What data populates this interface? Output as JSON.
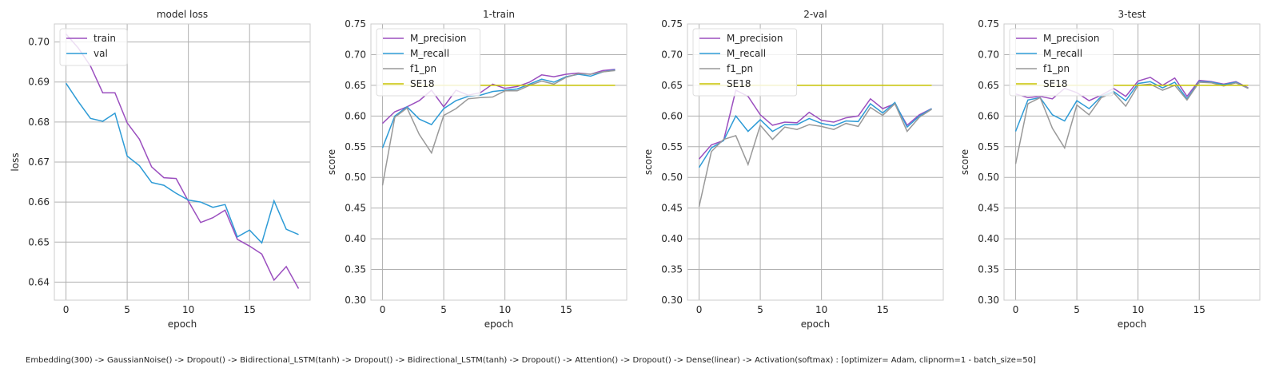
{
  "caption": "Embedding(300) -> GaussianNoise() -> Dropout() -> Bidirectional_LSTM(tanh) -> Dropout() -> Bidirectional_LSTM(tanh) -> Dropout() -> Attention() -> Dropout() -> Dense(linear) -> Activation(softmax) : [optimizer= Adam, clipnorm=1 - batch_size=50]",
  "chart_data": [
    {
      "type": "line",
      "title": "model loss",
      "xlabel": "epoch",
      "ylabel": "loss",
      "xlim": [
        -0.95,
        19.95
      ],
      "ylim": [
        0.6355,
        0.7045
      ],
      "xticks": [
        0,
        5,
        10,
        15
      ],
      "yticks": [
        0.64,
        0.65,
        0.66,
        0.67,
        0.68,
        0.69,
        0.7
      ],
      "ytick_format": "0.2f",
      "grid": true,
      "legend_position": "top-left",
      "x": [
        0,
        1,
        2,
        3,
        4,
        5,
        6,
        7,
        8,
        9,
        10,
        11,
        12,
        13,
        14,
        15,
        16,
        17,
        18,
        19
      ],
      "series": [
        {
          "name": "train",
          "color": "#9b4fbf",
          "values": [
            0.702,
            0.6985,
            0.694,
            0.6873,
            0.6873,
            0.6798,
            0.6757,
            0.6688,
            0.6661,
            0.6659,
            0.6602,
            0.6549,
            0.6561,
            0.658,
            0.6507,
            0.649,
            0.647,
            0.6405,
            0.6439,
            0.6384
          ]
        },
        {
          "name": "val",
          "color": "#2e9bd6",
          "values": [
            0.6897,
            0.6851,
            0.6809,
            0.6802,
            0.6822,
            0.6715,
            0.6691,
            0.6649,
            0.6642,
            0.6622,
            0.6605,
            0.66,
            0.6587,
            0.6594,
            0.6513,
            0.653,
            0.6498,
            0.6603,
            0.6532,
            0.6519
          ]
        }
      ]
    },
    {
      "type": "line",
      "title": "1-train",
      "xlabel": "epoch",
      "ylabel": "score",
      "xlim": [
        -0.95,
        19.95
      ],
      "ylim": [
        0.3,
        0.75
      ],
      "xticks": [
        0,
        5,
        10,
        15
      ],
      "yticks": [
        0.3,
        0.35,
        0.4,
        0.45,
        0.5,
        0.55,
        0.6,
        0.65,
        0.7,
        0.75
      ],
      "ytick_format": "0.2f",
      "grid": true,
      "legend_position": "top-left",
      "x": [
        0,
        1,
        2,
        3,
        4,
        5,
        6,
        7,
        8,
        9,
        10,
        11,
        12,
        13,
        14,
        15,
        16,
        17,
        18,
        19
      ],
      "series": [
        {
          "name": "M_precision",
          "color": "#9b4fbf",
          "values": [
            0.588,
            0.607,
            0.615,
            0.625,
            0.642,
            0.615,
            0.642,
            0.634,
            0.638,
            0.652,
            0.645,
            0.648,
            0.655,
            0.667,
            0.664,
            0.668,
            0.67,
            0.668,
            0.674,
            0.676
          ]
        },
        {
          "name": "M_recall",
          "color": "#2e9bd6",
          "values": [
            0.548,
            0.6,
            0.615,
            0.595,
            0.586,
            0.612,
            0.625,
            0.632,
            0.634,
            0.64,
            0.642,
            0.644,
            0.652,
            0.66,
            0.655,
            0.664,
            0.668,
            0.665,
            0.672,
            0.675
          ]
        },
        {
          "name": "f1_pn",
          "color": "#999999",
          "values": [
            0.487,
            0.598,
            0.613,
            0.57,
            0.54,
            0.601,
            0.612,
            0.628,
            0.63,
            0.631,
            0.641,
            0.641,
            0.65,
            0.657,
            0.652,
            0.663,
            0.669,
            0.668,
            0.672,
            0.674
          ]
        },
        {
          "name": "SE18",
          "color": "#c8c400",
          "values": [
            0.65,
            0.65,
            0.65,
            0.65,
            0.65,
            0.65,
            0.65,
            0.65,
            0.65,
            0.65,
            0.65,
            0.65,
            0.65,
            0.65,
            0.65,
            0.65,
            0.65,
            0.65,
            0.65,
            0.65
          ]
        }
      ]
    },
    {
      "type": "line",
      "title": "2-val",
      "xlabel": "epoch",
      "ylabel": "score",
      "xlim": [
        -0.95,
        19.95
      ],
      "ylim": [
        0.3,
        0.75
      ],
      "xticks": [
        0,
        5,
        10,
        15
      ],
      "yticks": [
        0.3,
        0.35,
        0.4,
        0.45,
        0.5,
        0.55,
        0.6,
        0.65,
        0.7,
        0.75
      ],
      "ytick_format": "0.2f",
      "grid": true,
      "legend_position": "top-left",
      "x": [
        0,
        1,
        2,
        3,
        4,
        5,
        6,
        7,
        8,
        9,
        10,
        11,
        12,
        13,
        14,
        15,
        16,
        17,
        18,
        19
      ],
      "series": [
        {
          "name": "M_precision",
          "color": "#9b4fbf",
          "values": [
            0.53,
            0.553,
            0.56,
            0.642,
            0.632,
            0.602,
            0.585,
            0.59,
            0.589,
            0.606,
            0.593,
            0.59,
            0.597,
            0.6,
            0.628,
            0.612,
            0.62,
            0.585,
            0.602,
            0.612
          ]
        },
        {
          "name": "M_recall",
          "color": "#2e9bd6",
          "values": [
            0.516,
            0.548,
            0.56,
            0.6,
            0.575,
            0.594,
            0.575,
            0.586,
            0.586,
            0.596,
            0.588,
            0.584,
            0.592,
            0.591,
            0.62,
            0.605,
            0.622,
            0.582,
            0.6,
            0.612
          ]
        },
        {
          "name": "f1_pn",
          "color": "#999999",
          "values": [
            0.452,
            0.542,
            0.562,
            0.568,
            0.521,
            0.585,
            0.562,
            0.582,
            0.578,
            0.586,
            0.583,
            0.578,
            0.588,
            0.583,
            0.614,
            0.601,
            0.62,
            0.575,
            0.598,
            0.611
          ]
        },
        {
          "name": "SE18",
          "color": "#c8c400",
          "values": [
            0.65,
            0.65,
            0.65,
            0.65,
            0.65,
            0.65,
            0.65,
            0.65,
            0.65,
            0.65,
            0.65,
            0.65,
            0.65,
            0.65,
            0.65,
            0.65,
            0.65,
            0.65,
            0.65,
            0.65
          ]
        }
      ]
    },
    {
      "type": "line",
      "title": "3-test",
      "xlabel": "epoch",
      "ylabel": "score",
      "xlim": [
        -0.95,
        19.95
      ],
      "ylim": [
        0.3,
        0.75
      ],
      "xticks": [
        0,
        5,
        10,
        15
      ],
      "yticks": [
        0.3,
        0.35,
        0.4,
        0.45,
        0.5,
        0.55,
        0.6,
        0.65,
        0.7,
        0.75
      ],
      "ytick_format": "0.2f",
      "grid": true,
      "legend_position": "top-left",
      "x": [
        0,
        1,
        2,
        3,
        4,
        5,
        6,
        7,
        8,
        9,
        10,
        11,
        12,
        13,
        14,
        15,
        16,
        17,
        18,
        19
      ],
      "series": [
        {
          "name": "M_precision",
          "color": "#9b4fbf",
          "values": [
            0.636,
            0.63,
            0.632,
            0.628,
            0.645,
            0.638,
            0.625,
            0.634,
            0.645,
            0.632,
            0.657,
            0.663,
            0.65,
            0.662,
            0.632,
            0.658,
            0.656,
            0.652,
            0.656,
            0.646
          ]
        },
        {
          "name": "M_recall",
          "color": "#2e9bd6",
          "values": [
            0.575,
            0.626,
            0.63,
            0.602,
            0.592,
            0.625,
            0.612,
            0.632,
            0.64,
            0.625,
            0.653,
            0.656,
            0.646,
            0.655,
            0.628,
            0.656,
            0.655,
            0.651,
            0.655,
            0.645
          ]
        },
        {
          "name": "f1_pn",
          "color": "#999999",
          "values": [
            0.522,
            0.62,
            0.63,
            0.58,
            0.548,
            0.618,
            0.602,
            0.63,
            0.638,
            0.616,
            0.65,
            0.652,
            0.642,
            0.65,
            0.626,
            0.655,
            0.654,
            0.649,
            0.654,
            0.645
          ]
        },
        {
          "name": "SE18",
          "color": "#c8c400",
          "values": [
            0.65,
            0.65,
            0.65,
            0.65,
            0.65,
            0.65,
            0.65,
            0.65,
            0.65,
            0.65,
            0.65,
            0.65,
            0.65,
            0.65,
            0.65,
            0.65,
            0.65,
            0.65,
            0.65,
            0.65
          ]
        }
      ]
    }
  ]
}
